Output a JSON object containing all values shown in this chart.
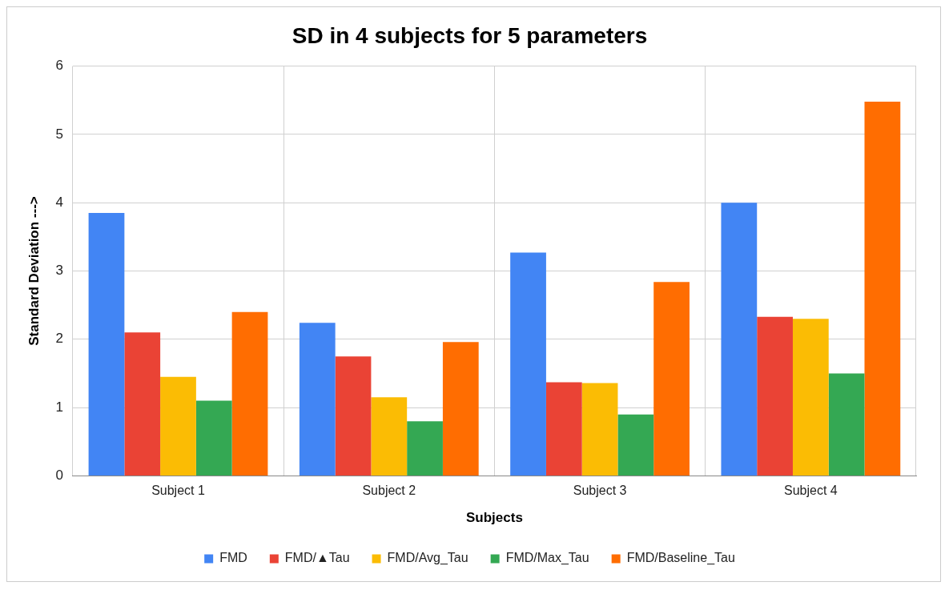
{
  "chart_data": {
    "type": "bar",
    "title": "SD in 4 subjects for 5 parameters",
    "xlabel": "Subjects",
    "ylabel": "Standard Deviation --->",
    "categories": [
      "Subject 1",
      "Subject 2",
      "Subject 3",
      "Subject 4"
    ],
    "series": [
      {
        "name": "FMD",
        "color": "#4285f4",
        "values": [
          3.85,
          2.24,
          3.27,
          4.0
        ]
      },
      {
        "name": "FMD/▲Tau",
        "color": "#ea4335",
        "values": [
          2.1,
          1.75,
          1.37,
          2.33
        ]
      },
      {
        "name": "FMD/Avg_Tau",
        "color": "#fbbc04",
        "values": [
          1.45,
          1.15,
          1.36,
          2.3
        ]
      },
      {
        "name": "FMD/Max_Tau",
        "color": "#34a853",
        "values": [
          1.1,
          0.8,
          0.9,
          1.5
        ]
      },
      {
        "name": "FMD/Baseline_Tau",
        "color": "#ff6d01",
        "values": [
          2.4,
          1.96,
          2.84,
          5.48
        ]
      }
    ],
    "ylim": [
      0,
      6
    ],
    "yticks": [
      0,
      1,
      2,
      3,
      4,
      5,
      6
    ],
    "grid": true,
    "legend": "bottom"
  }
}
